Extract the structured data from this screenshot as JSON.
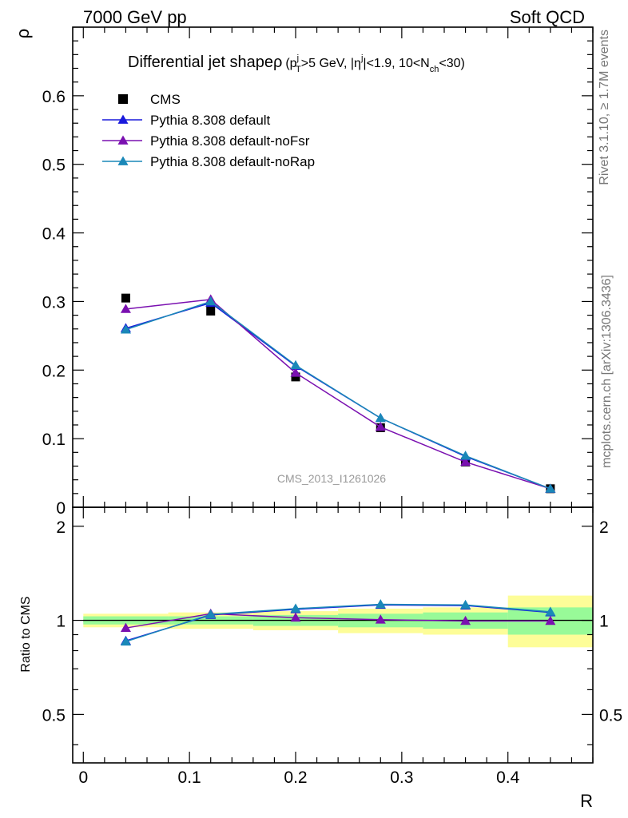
{
  "header": {
    "left": "7000 GeV pp",
    "right": "Soft QCD"
  },
  "plot_title": "Differential jet shapeρ (p_T^j>5 GeV, |η^j|<1.9, 10<N_ch<30)",
  "watermark": "CMS_2013_I1261026",
  "side_labels": {
    "rivet": "Rivet 3.1.10, ≥ 1.7M events",
    "mcplots": "mcplots.cern.ch [arXiv:1306.3436]"
  },
  "colors": {
    "cms": "#000000",
    "default": "#1a1adc",
    "noFsr": "#7a10b0",
    "noRap": "#1a88b8",
    "band_green": "#98fa98",
    "band_yellow": "#fdfd98"
  },
  "chart_data": [
    {
      "type": "line",
      "title": "Differential jet shapeρ (p_T^j>5 GeV, |η^j|<1.9, 10<N_ch<30)",
      "xlabel": "",
      "ylabel": "ρ",
      "xlim": [
        -0.01,
        0.48
      ],
      "ylim": [
        0,
        0.7
      ],
      "yticks": [
        0,
        0.1,
        0.2,
        0.3,
        0.4,
        0.5,
        0.6
      ],
      "ytick_labels": [
        "0",
        "0.1",
        "0.2",
        "0.3",
        "0.4",
        "0.5",
        "0.6"
      ],
      "legend_position": "top-left",
      "x": [
        0.04,
        0.12,
        0.2,
        0.28,
        0.36,
        0.44
      ],
      "series": [
        {
          "name": "CMS",
          "marker": "square",
          "values": [
            0.305,
            0.286,
            0.19,
            0.116,
            0.066,
            0.027
          ]
        },
        {
          "name": "Pythia 8.308 default",
          "marker": "triangle",
          "values": [
            0.261,
            0.298,
            0.206,
            0.13,
            0.074,
            0.027
          ]
        },
        {
          "name": "Pythia 8.308 default-noFsr",
          "marker": "triangle",
          "values": [
            0.289,
            0.303,
            0.196,
            0.117,
            0.066,
            0.027
          ]
        },
        {
          "name": "Pythia 8.308 default-noRap",
          "marker": "triangle",
          "values": [
            0.259,
            0.3,
            0.207,
            0.13,
            0.075,
            0.027
          ]
        }
      ]
    },
    {
      "type": "line",
      "xlabel": "R",
      "ylabel": "Ratio to CMS",
      "xlim": [
        -0.01,
        0.48
      ],
      "ylim": [
        0.35,
        2.3
      ],
      "yscale": "log",
      "yticks": [
        0.5,
        1,
        2
      ],
      "ytick_labels": [
        "0.5",
        "1",
        "2"
      ],
      "xticks": [
        0,
        0.1,
        0.2,
        0.3,
        0.4
      ],
      "xtick_labels": [
        "0",
        "0.1",
        "0.2",
        "0.3",
        "0.4"
      ],
      "x": [
        0.04,
        0.12,
        0.2,
        0.28,
        0.36,
        0.44
      ],
      "bands": {
        "bin_edges": [
          0.0,
          0.08,
          0.16,
          0.24,
          0.32,
          0.4,
          0.48
        ],
        "green": [
          [
            0.97,
            1.03
          ],
          [
            0.97,
            1.03
          ],
          [
            0.96,
            1.04
          ],
          [
            0.95,
            1.05
          ],
          [
            0.94,
            1.06
          ],
          [
            0.9,
            1.1
          ]
        ],
        "yellow": [
          [
            0.95,
            1.05
          ],
          [
            0.94,
            1.06
          ],
          [
            0.93,
            1.07
          ],
          [
            0.91,
            1.09
          ],
          [
            0.9,
            1.1
          ],
          [
            0.82,
            1.2
          ]
        ]
      },
      "series": [
        {
          "name": "Pythia 8.308 default",
          "values": [
            0.86,
            1.04,
            1.085,
            1.12,
            1.115,
            1.06
          ]
        },
        {
          "name": "Pythia 8.308 default-noFsr",
          "values": [
            0.945,
            1.05,
            1.02,
            1.005,
            0.995,
            0.995
          ]
        },
        {
          "name": "Pythia 8.308 default-noRap",
          "values": [
            0.855,
            1.045,
            1.09,
            1.125,
            1.12,
            1.065
          ]
        }
      ]
    }
  ]
}
